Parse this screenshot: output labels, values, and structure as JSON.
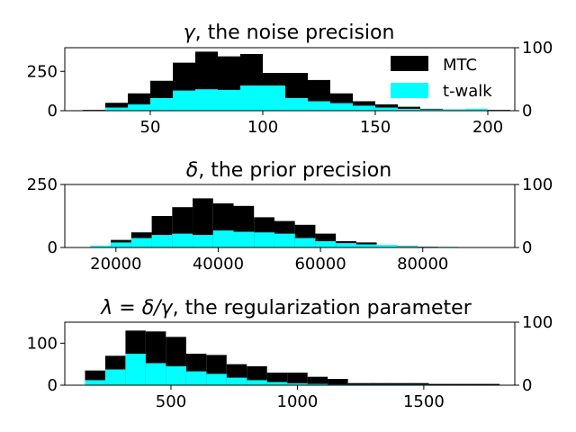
{
  "colors": {
    "mtc": "#000000",
    "twalk": "#00ffff",
    "axis": "#000000",
    "background": "#ffffff"
  },
  "legend": {
    "placement": "top-right",
    "entries": [
      {
        "label": "MTC",
        "color": "#000000"
      },
      {
        "label": "t-walk",
        "color": "#00ffff"
      }
    ]
  },
  "chart_data": [
    {
      "type": "bar",
      "title_prefix": "γ",
      "title": ", the noise precision",
      "xlim": [
        12,
        212
      ],
      "ylim_left": [
        0,
        400
      ],
      "ylim_right": [
        0,
        100
      ],
      "xticks": [
        50,
        100,
        150,
        200
      ],
      "yticks_left": [
        0,
        250
      ],
      "yticks_right": [
        0,
        100
      ],
      "series": [
        {
          "name": "MTC",
          "axis": "left",
          "bins": [
            [
              20,
              30
            ],
            [
              30,
              40
            ],
            [
              40,
              50
            ],
            [
              50,
              60
            ],
            [
              60,
              70
            ],
            [
              70,
              80
            ],
            [
              80,
              90
            ],
            [
              90,
              100
            ],
            [
              100,
              110
            ],
            [
              110,
              120
            ],
            [
              120,
              130
            ],
            [
              130,
              140
            ],
            [
              140,
              150
            ],
            [
              150,
              160
            ],
            [
              160,
              170
            ],
            [
              170,
              180
            ],
            [
              180,
              190
            ],
            [
              190,
              200
            ],
            [
              200,
              210
            ]
          ],
          "values": [
            5,
            50,
            110,
            190,
            305,
            375,
            345,
            360,
            240,
            240,
            195,
            110,
            60,
            40,
            25,
            12,
            8,
            10,
            5
          ]
        },
        {
          "name": "t-walk",
          "axis": "right",
          "bins": [
            [
              30,
              40
            ],
            [
              40,
              50
            ],
            [
              50,
              60
            ],
            [
              60,
              70
            ],
            [
              70,
              80
            ],
            [
              80,
              90
            ],
            [
              90,
              100
            ],
            [
              100,
              110
            ],
            [
              110,
              120
            ],
            [
              120,
              130
            ],
            [
              130,
              140
            ],
            [
              140,
              150
            ],
            [
              150,
              160
            ],
            [
              160,
              170
            ],
            [
              170,
              180
            ],
            [
              180,
              190
            ],
            [
              190,
              200
            ]
          ],
          "values": [
            5,
            10,
            20,
            32,
            34,
            33,
            40,
            40,
            20,
            15,
            12,
            8,
            5,
            3,
            2,
            2,
            3
          ]
        }
      ]
    },
    {
      "type": "bar",
      "title_prefix": "δ",
      "title": ", the prior precision",
      "xlim": [
        10000,
        98000
      ],
      "ylim_left": [
        0,
        250
      ],
      "ylim_right": [
        0,
        100
      ],
      "xticks": [
        20000,
        40000,
        60000,
        80000
      ],
      "yticks_left": [
        0,
        250
      ],
      "yticks_right": [
        0,
        100
      ],
      "series": [
        {
          "name": "MTC",
          "axis": "left",
          "bins": [
            [
              15000,
              19000
            ],
            [
              19000,
              23000
            ],
            [
              23000,
              27000
            ],
            [
              27000,
              31000
            ],
            [
              31000,
              35000
            ],
            [
              35000,
              39000
            ],
            [
              39000,
              43000
            ],
            [
              43000,
              47000
            ],
            [
              47000,
              51000
            ],
            [
              51000,
              55000
            ],
            [
              55000,
              59000
            ],
            [
              59000,
              63000
            ],
            [
              63000,
              67000
            ],
            [
              67000,
              71000
            ],
            [
              71000,
              75000
            ],
            [
              75000,
              79000
            ],
            [
              79000,
              83000
            ],
            [
              83000,
              87000
            ],
            [
              87000,
              91000
            ],
            [
              91000,
              95000
            ]
          ],
          "values": [
            5,
            30,
            60,
            125,
            160,
            195,
            175,
            165,
            120,
            105,
            90,
            55,
            25,
            20,
            8,
            6,
            3,
            2,
            1,
            1
          ]
        },
        {
          "name": "t-walk",
          "axis": "right",
          "bins": [
            [
              15000,
              19000
            ],
            [
              19000,
              23000
            ],
            [
              23000,
              27000
            ],
            [
              27000,
              31000
            ],
            [
              31000,
              35000
            ],
            [
              35000,
              39000
            ],
            [
              39000,
              43000
            ],
            [
              43000,
              47000
            ],
            [
              47000,
              51000
            ],
            [
              51000,
              55000
            ],
            [
              55000,
              59000
            ],
            [
              59000,
              63000
            ],
            [
              63000,
              67000
            ],
            [
              67000,
              71000
            ],
            [
              71000,
              75000
            ],
            [
              75000,
              79000
            ],
            [
              79000,
              83000
            ],
            [
              83000,
              87000
            ],
            [
              87000,
              91000
            ],
            [
              91000,
              95000
            ]
          ],
          "values": [
            3,
            8,
            15,
            20,
            22,
            20,
            27,
            25,
            24,
            22,
            15,
            10,
            7,
            5,
            4,
            2,
            1,
            1,
            0,
            0
          ]
        }
      ]
    },
    {
      "type": "bar",
      "title_prefix": "λ = δ/γ",
      "title": ", the regularization parameter",
      "xlim": [
        80,
        1860
      ],
      "ylim_left": [
        0,
        150
      ],
      "ylim_right": [
        0,
        100
      ],
      "xticks": [
        500,
        1000,
        1500
      ],
      "yticks_left": [
        0,
        100
      ],
      "yticks_right": [
        0,
        100
      ],
      "series": [
        {
          "name": "MTC",
          "axis": "left",
          "bins": [
            [
              160,
              240
            ],
            [
              240,
              320
            ],
            [
              320,
              400
            ],
            [
              400,
              480
            ],
            [
              480,
              560
            ],
            [
              560,
              640
            ],
            [
              640,
              720
            ],
            [
              720,
              800
            ],
            [
              800,
              880
            ],
            [
              880,
              960
            ],
            [
              960,
              1040
            ],
            [
              1040,
              1120
            ],
            [
              1120,
              1200
            ],
            [
              1200,
              1280
            ],
            [
              1280,
              1360
            ],
            [
              1360,
              1440
            ],
            [
              1440,
              1520
            ],
            [
              1520,
              1600
            ],
            [
              1600,
              1680
            ],
            [
              1680,
              1760
            ],
            [
              1760,
              1800
            ]
          ],
          "values": [
            35,
            70,
            130,
            128,
            115,
            75,
            72,
            50,
            45,
            30,
            30,
            20,
            15,
            5,
            5,
            5,
            5,
            3,
            3,
            3,
            3
          ]
        },
        {
          "name": "t-walk",
          "axis": "right",
          "bins": [
            [
              160,
              240
            ],
            [
              240,
              320
            ],
            [
              320,
              400
            ],
            [
              400,
              480
            ],
            [
              480,
              560
            ],
            [
              560,
              640
            ],
            [
              640,
              720
            ],
            [
              720,
              800
            ],
            [
              800,
              880
            ],
            [
              880,
              960
            ],
            [
              960,
              1040
            ],
            [
              1040,
              1120
            ],
            [
              1120,
              1200
            ],
            [
              1200,
              1280
            ],
            [
              1280,
              1360
            ],
            [
              1360,
              1440
            ],
            [
              1440,
              1520
            ],
            [
              1520,
              1600
            ],
            [
              1600,
              1680
            ],
            [
              1680,
              1760
            ],
            [
              1760,
              1800
            ]
          ],
          "values": [
            8,
            25,
            50,
            35,
            30,
            22,
            18,
            12,
            8,
            5,
            3,
            2,
            1,
            1,
            1,
            1,
            1,
            0,
            0,
            0,
            0
          ]
        }
      ]
    }
  ]
}
